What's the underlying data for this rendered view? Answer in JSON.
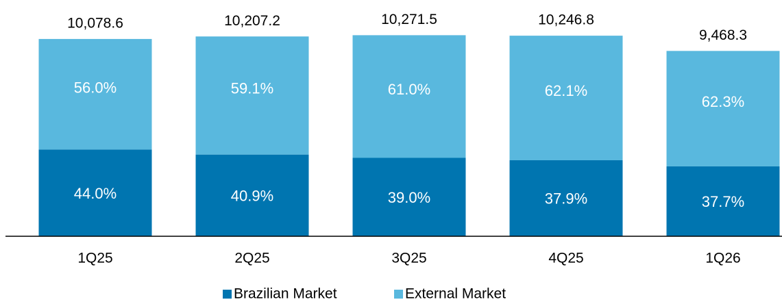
{
  "chart_data": {
    "type": "bar",
    "categories": [
      "1Q25",
      "2Q25",
      "3Q25",
      "4Q25",
      "1Q26"
    ],
    "totals": [
      10078.6,
      10207.2,
      10271.5,
      10246.8,
      9468.3
    ],
    "total_labels": [
      "10,078.6",
      "10,207.2",
      "10,271.5",
      "10,246.8",
      "9,468.3"
    ],
    "series": [
      {
        "name": "Brazilian Market",
        "color": "#0075b0",
        "values": [
          44.0,
          40.9,
          39.0,
          37.9,
          37.7
        ],
        "value_labels": [
          "44.0%",
          "40.9%",
          "39.0%",
          "37.9%",
          "37.7%"
        ]
      },
      {
        "name": "External Market",
        "color": "#59b8de",
        "values": [
          56.0,
          59.1,
          61.0,
          62.1,
          62.3
        ],
        "value_labels": [
          "56.0%",
          "59.1%",
          "61.0%",
          "62.1%",
          "62.3%"
        ]
      }
    ],
    "legend": "bottom"
  }
}
